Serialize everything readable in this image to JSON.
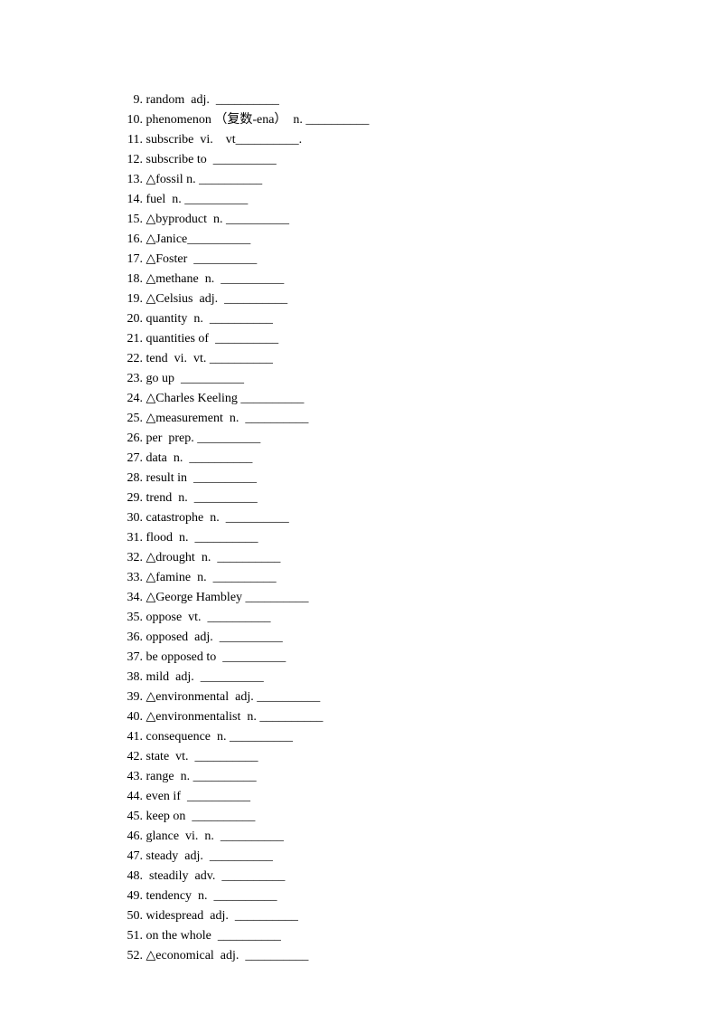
{
  "font": {
    "family": "SimSun",
    "size_pt": 10.5,
    "color": "#000000"
  },
  "background_color": "#ffffff",
  "blank": "__________",
  "items": [
    {
      "n": "9.",
      "t": "random  adj.  __________"
    },
    {
      "n": "10.",
      "t": "phenomenon （复数-ena）  n. __________"
    },
    {
      "n": "11.",
      "t": "subscribe  vi.    vt__________."
    },
    {
      "n": "12.",
      "t": "subscribe to  __________"
    },
    {
      "n": "13.",
      "t": "△fossil n. __________"
    },
    {
      "n": "14.",
      "t": "fuel  n. __________"
    },
    {
      "n": "15.",
      "t": "△byproduct  n. __________"
    },
    {
      "n": "16.",
      "t": "△Janice__________"
    },
    {
      "n": "17.",
      "t": "△Foster  __________"
    },
    {
      "n": "18.",
      "t": "△methane  n.  __________"
    },
    {
      "n": "19.",
      "t": "△Celsius  adj.  __________"
    },
    {
      "n": "20.",
      "t": "quantity  n.  __________"
    },
    {
      "n": "21.",
      "t": "quantities of  __________"
    },
    {
      "n": "22.",
      "t": "tend  vi.  vt. __________"
    },
    {
      "n": "23.",
      "t": "go up  __________"
    },
    {
      "n": "24.",
      "t": "△Charles Keeling __________"
    },
    {
      "n": "25.",
      "t": "△measurement  n.  __________"
    },
    {
      "n": "26.",
      "t": "per  prep. __________"
    },
    {
      "n": "27.",
      "t": "data  n.  __________"
    },
    {
      "n": "28.",
      "t": "result in  __________"
    },
    {
      "n": "29.",
      "t": "trend  n.  __________"
    },
    {
      "n": "30.",
      "t": "catastrophe  n.  __________"
    },
    {
      "n": "31.",
      "t": "flood  n.  __________"
    },
    {
      "n": "32.",
      "t": "△drought  n.  __________"
    },
    {
      "n": "33.",
      "t": "△famine  n.  __________"
    },
    {
      "n": "34.",
      "t": "△George Hambley __________"
    },
    {
      "n": "35.",
      "t": "oppose  vt.  __________"
    },
    {
      "n": "36.",
      "t": "opposed  adj.  __________"
    },
    {
      "n": "37.",
      "t": "be opposed to  __________"
    },
    {
      "n": "38.",
      "t": "mild  adj.  __________"
    },
    {
      "n": "39.",
      "t": "△environmental  adj. __________"
    },
    {
      "n": "40.",
      "t": "△environmentalist  n. __________"
    },
    {
      "n": "41.",
      "t": "consequence  n. __________"
    },
    {
      "n": "42.",
      "t": "state  vt.  __________"
    },
    {
      "n": "43.",
      "t": "range  n. __________"
    },
    {
      "n": "44.",
      "t": "even if  __________"
    },
    {
      "n": "45.",
      "t": "keep on  __________"
    },
    {
      "n": "46.",
      "t": "glance  vi.  n.  __________"
    },
    {
      "n": "47.",
      "t": "steady  adj.  __________"
    },
    {
      "n": "48.",
      "t": " steadily  adv.  __________"
    },
    {
      "n": "49.",
      "t": "tendency  n.  __________"
    },
    {
      "n": "50.",
      "t": "widespread  adj.  __________"
    },
    {
      "n": "51.",
      "t": "on the whole  __________"
    },
    {
      "n": "52.",
      "t": "△economical  adj.  __________"
    }
  ]
}
